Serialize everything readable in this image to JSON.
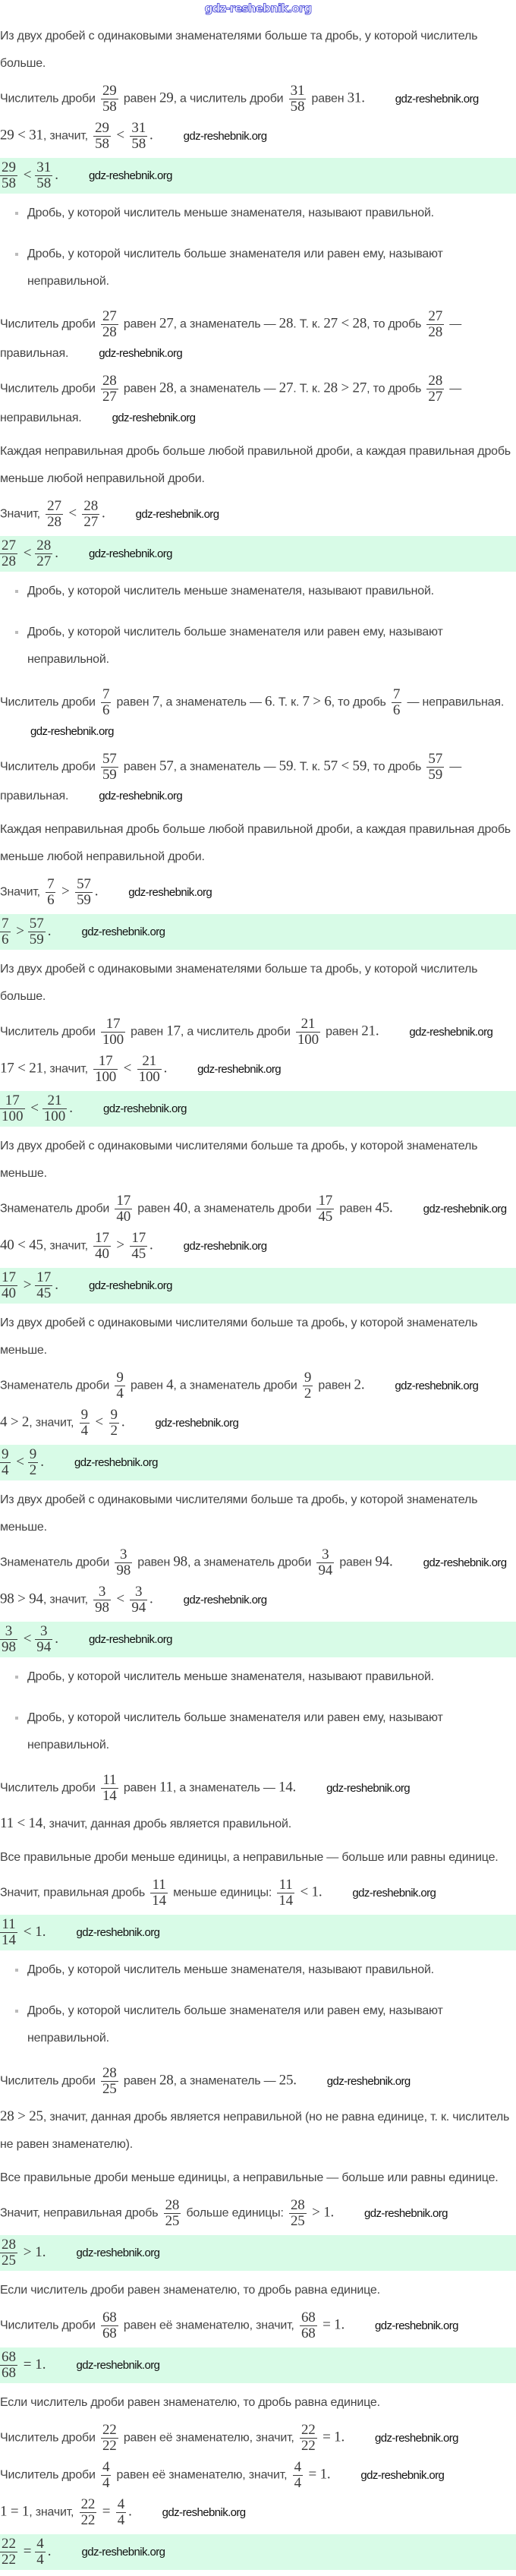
{
  "header": {
    "logo": "gdz-reshebnik.org"
  },
  "watermark": "gdz-reshebnik.org",
  "colors": {
    "answer_background": "#d8fbe7",
    "text": "#454545",
    "logo": "#3b3bd6"
  },
  "definitions": [
    "Дробь, у которой числитель меньше знаменателя, называют правильной.",
    "Дробь, у которой числитель больше знаменателя или равен ему, называют неправильной."
  ],
  "blocks": [
    {
      "type": "p",
      "s": [
        "Из двух дробей с одинаковыми знаменателями больше та дробь, у которой числитель больше."
      ]
    },
    {
      "type": "p",
      "s": [
        "Числитель дроби ",
        {
          "f": [
            "29",
            "58"
          ]
        },
        " равен ",
        {
          "m": "29"
        },
        ", а числитель дроби ",
        {
          "f": [
            "31",
            "58"
          ]
        },
        " равен ",
        {
          "m": "31."
        }
      ]
    },
    {
      "type": "p",
      "s": [
        {
          "m": "29 < 31"
        },
        ", значит, ",
        {
          "f": [
            "29",
            "58"
          ]
        },
        {
          "m": " < "
        },
        {
          "f": [
            "31",
            "58"
          ]
        },
        {
          "m": "."
        }
      ]
    },
    {
      "type": "ans",
      "s": [
        {
          "f": [
            "29",
            "58"
          ]
        },
        {
          "m": " < "
        },
        {
          "f": [
            "31",
            "58"
          ]
        },
        {
          "m": "."
        }
      ]
    },
    {
      "type": "list"
    },
    {
      "type": "p",
      "s": [
        "Числитель дроби ",
        {
          "f": [
            "27",
            "28"
          ]
        },
        " равен ",
        {
          "m": "27"
        },
        ", а знаменатель — ",
        {
          "m": "28"
        },
        ". Т. к. ",
        {
          "m": "27 < 28"
        },
        ", то дробь ",
        {
          "f": [
            "27",
            "28"
          ]
        },
        " — правильная."
      ]
    },
    {
      "type": "p",
      "s": [
        "Числитель дроби ",
        {
          "f": [
            "28",
            "27"
          ]
        },
        " равен ",
        {
          "m": "28"
        },
        ", а знаменатель — ",
        {
          "m": "27"
        },
        ". Т. к. ",
        {
          "m": "28 > 27"
        },
        ", то дробь ",
        {
          "f": [
            "28",
            "27"
          ]
        },
        " — неправильная."
      ]
    },
    {
      "type": "p",
      "s": [
        "Каждая неправильная дробь больше любой правильной дроби, а каждая правильная дробь меньше любой неправильной дроби."
      ]
    },
    {
      "type": "p",
      "s": [
        "Значит, ",
        {
          "f": [
            "27",
            "28"
          ]
        },
        {
          "m": " < "
        },
        {
          "f": [
            "28",
            "27"
          ]
        },
        {
          "m": "."
        }
      ]
    },
    {
      "type": "ans",
      "s": [
        {
          "f": [
            "27",
            "28"
          ]
        },
        {
          "m": " < "
        },
        {
          "f": [
            "28",
            "27"
          ]
        },
        {
          "m": "."
        }
      ]
    },
    {
      "type": "list"
    },
    {
      "type": "p",
      "s": [
        "Числитель дроби ",
        {
          "f": [
            "7",
            "6"
          ]
        },
        " равен ",
        {
          "m": "7"
        },
        ", а знаменатель — ",
        {
          "m": "6"
        },
        ". Т. к. ",
        {
          "m": "7 > 6"
        },
        ", то дробь ",
        {
          "f": [
            "7",
            "6"
          ]
        },
        " — неправильная."
      ]
    },
    {
      "type": "p",
      "s": [
        "Числитель дроби ",
        {
          "f": [
            "57",
            "59"
          ]
        },
        " равен ",
        {
          "m": "57"
        },
        ", а знаменатель — ",
        {
          "m": "59"
        },
        ". Т. к. ",
        {
          "m": "57 < 59"
        },
        ", то дробь ",
        {
          "f": [
            "57",
            "59"
          ]
        },
        " — правильная."
      ]
    },
    {
      "type": "p",
      "s": [
        "Каждая неправильная дробь больше любой правильной дроби, а каждая правильная дробь меньше любой неправильной дроби."
      ]
    },
    {
      "type": "p",
      "s": [
        "Значит, ",
        {
          "f": [
            "7",
            "6"
          ]
        },
        {
          "m": " > "
        },
        {
          "f": [
            "57",
            "59"
          ]
        },
        {
          "m": "."
        }
      ]
    },
    {
      "type": "ans",
      "s": [
        {
          "f": [
            "7",
            "6"
          ]
        },
        {
          "m": " > "
        },
        {
          "f": [
            "57",
            "59"
          ]
        },
        {
          "m": "."
        }
      ]
    },
    {
      "type": "p",
      "s": [
        "Из двух дробей с одинаковыми знаменателями больше та дробь, у которой числитель больше."
      ]
    },
    {
      "type": "p",
      "s": [
        "Числитель дроби ",
        {
          "f": [
            "17",
            "100"
          ]
        },
        " равен ",
        {
          "m": "17"
        },
        ", а числитель дроби ",
        {
          "f": [
            "21",
            "100"
          ]
        },
        " равен ",
        {
          "m": "21."
        }
      ]
    },
    {
      "type": "p",
      "s": [
        {
          "m": "17 < 21"
        },
        ", значит, ",
        {
          "f": [
            "17",
            "100"
          ]
        },
        {
          "m": " < "
        },
        {
          "f": [
            "21",
            "100"
          ]
        },
        {
          "m": "."
        }
      ]
    },
    {
      "type": "ans",
      "s": [
        {
          "f": [
            "17",
            "100"
          ]
        },
        {
          "m": " < "
        },
        {
          "f": [
            "21",
            "100"
          ]
        },
        {
          "m": "."
        }
      ]
    },
    {
      "type": "p",
      "s": [
        "Из двух дробей с одинаковыми числителями больше та дробь, у которой знаменатель меньше."
      ]
    },
    {
      "type": "p",
      "s": [
        "Знаменатель дроби ",
        {
          "f": [
            "17",
            "40"
          ]
        },
        " равен ",
        {
          "m": "40"
        },
        ", а знаменатель дроби ",
        {
          "f": [
            "17",
            "45"
          ]
        },
        " равен ",
        {
          "m": "45."
        }
      ]
    },
    {
      "type": "p",
      "s": [
        {
          "m": "40 < 45"
        },
        ", значит, ",
        {
          "f": [
            "17",
            "40"
          ]
        },
        {
          "m": " > "
        },
        {
          "f": [
            "17",
            "45"
          ]
        },
        {
          "m": "."
        }
      ]
    },
    {
      "type": "ans",
      "s": [
        {
          "f": [
            "17",
            "40"
          ]
        },
        {
          "m": " > "
        },
        {
          "f": [
            "17",
            "45"
          ]
        },
        {
          "m": "."
        }
      ]
    },
    {
      "type": "p",
      "s": [
        "Из двух дробей с одинаковыми числителями больше та дробь, у которой знаменатель меньше."
      ]
    },
    {
      "type": "p",
      "s": [
        "Знаменатель дроби ",
        {
          "f": [
            "9",
            "4"
          ]
        },
        " равен ",
        {
          "m": "4"
        },
        ", а знаменатель дроби ",
        {
          "f": [
            "9",
            "2"
          ]
        },
        " равен ",
        {
          "m": "2."
        }
      ]
    },
    {
      "type": "p",
      "s": [
        {
          "m": "4 > 2"
        },
        ", значит, ",
        {
          "f": [
            "9",
            "4"
          ]
        },
        {
          "m": " < "
        },
        {
          "f": [
            "9",
            "2"
          ]
        },
        {
          "m": "."
        }
      ]
    },
    {
      "type": "ans",
      "s": [
        {
          "f": [
            "9",
            "4"
          ]
        },
        {
          "m": " < "
        },
        {
          "f": [
            "9",
            "2"
          ]
        },
        {
          "m": "."
        }
      ]
    },
    {
      "type": "p",
      "s": [
        "Из двух дробей с одинаковыми числителями больше та дробь, у которой знаменатель меньше."
      ]
    },
    {
      "type": "p",
      "s": [
        "Знаменатель дроби ",
        {
          "f": [
            "3",
            "98"
          ]
        },
        " равен ",
        {
          "m": "98"
        },
        ", а знаменатель дроби ",
        {
          "f": [
            "3",
            "94"
          ]
        },
        " равен ",
        {
          "m": "94."
        }
      ]
    },
    {
      "type": "p",
      "s": [
        {
          "m": "98 > 94"
        },
        ", значит, ",
        {
          "f": [
            "3",
            "98"
          ]
        },
        {
          "m": " < "
        },
        {
          "f": [
            "3",
            "94"
          ]
        },
        {
          "m": "."
        }
      ]
    },
    {
      "type": "ans",
      "s": [
        {
          "f": [
            "3",
            "98"
          ]
        },
        {
          "m": " < "
        },
        {
          "f": [
            "3",
            "94"
          ]
        },
        {
          "m": "."
        }
      ]
    },
    {
      "type": "list"
    },
    {
      "type": "p",
      "s": [
        "Числитель дроби ",
        {
          "f": [
            "11",
            "14"
          ]
        },
        " равен ",
        {
          "m": "11"
        },
        ", а знаменатель — ",
        {
          "m": "14."
        }
      ]
    },
    {
      "type": "p",
      "s": [
        {
          "m": "11 < 14"
        },
        ", значит, данная дробь является правильной."
      ]
    },
    {
      "type": "p",
      "s": [
        "Все правильные дроби меньше единицы, а неправильные — больше или равны единице."
      ]
    },
    {
      "type": "p",
      "s": [
        "Значит, правильная дробь ",
        {
          "f": [
            "11",
            "14"
          ]
        },
        " меньше единицы: ",
        {
          "f": [
            "11",
            "14"
          ]
        },
        {
          "m": " < 1."
        }
      ]
    },
    {
      "type": "ans",
      "s": [
        {
          "f": [
            "11",
            "14"
          ]
        },
        {
          "m": " < 1."
        }
      ]
    },
    {
      "type": "list"
    },
    {
      "type": "p",
      "s": [
        "Числитель дроби ",
        {
          "f": [
            "28",
            "25"
          ]
        },
        " равен ",
        {
          "m": "28"
        },
        ", а знаменатель — ",
        {
          "m": "25."
        }
      ]
    },
    {
      "type": "p",
      "s": [
        {
          "m": "28 > 25"
        },
        ", значит, данная дробь является неправильной (но не равна единице, т. к. числитель не равен знаменателю)."
      ]
    },
    {
      "type": "p",
      "s": [
        "Все правильные дроби меньше единицы, а неправильные — больше или равны единице."
      ]
    },
    {
      "type": "p",
      "s": [
        "Значит, неправильная дробь ",
        {
          "f": [
            "28",
            "25"
          ]
        },
        " больше единицы: ",
        {
          "f": [
            "28",
            "25"
          ]
        },
        {
          "m": " > 1."
        }
      ]
    },
    {
      "type": "ans",
      "s": [
        {
          "f": [
            "28",
            "25"
          ]
        },
        {
          "m": " > 1."
        }
      ]
    },
    {
      "type": "p",
      "s": [
        "Если числитель дроби равен знаменателю, то дробь равна единице."
      ]
    },
    {
      "type": "p",
      "s": [
        "Числитель дроби ",
        {
          "f": [
            "68",
            "68"
          ]
        },
        " равен её знаменателю, значит, ",
        {
          "f": [
            "68",
            "68"
          ]
        },
        {
          "m": " = 1."
        }
      ]
    },
    {
      "type": "ans",
      "s": [
        {
          "f": [
            "68",
            "68"
          ]
        },
        {
          "m": " = 1."
        }
      ]
    },
    {
      "type": "p",
      "s": [
        "Если числитель дроби равен знаменателю, то дробь равна единице."
      ]
    },
    {
      "type": "p",
      "s": [
        "Числитель дроби ",
        {
          "f": [
            "22",
            "22"
          ]
        },
        " равен её знаменателю, значит, ",
        {
          "f": [
            "22",
            "22"
          ]
        },
        {
          "m": " = 1."
        }
      ]
    },
    {
      "type": "p",
      "s": [
        "Числитель дроби ",
        {
          "f": [
            "4",
            "4"
          ]
        },
        " равен её знаменателю, значит, ",
        {
          "f": [
            "4",
            "4"
          ]
        },
        {
          "m": " = 1."
        }
      ]
    },
    {
      "type": "p",
      "s": [
        {
          "m": "1 = 1"
        },
        ", значит, ",
        {
          "f": [
            "22",
            "22"
          ]
        },
        {
          "m": " = "
        },
        {
          "f": [
            "4",
            "4"
          ]
        },
        {
          "m": "."
        }
      ]
    },
    {
      "type": "ans",
      "s": [
        {
          "f": [
            "22",
            "22"
          ]
        },
        {
          "m": " = "
        },
        {
          "f": [
            "4",
            "4"
          ]
        },
        {
          "m": "."
        }
      ]
    }
  ]
}
